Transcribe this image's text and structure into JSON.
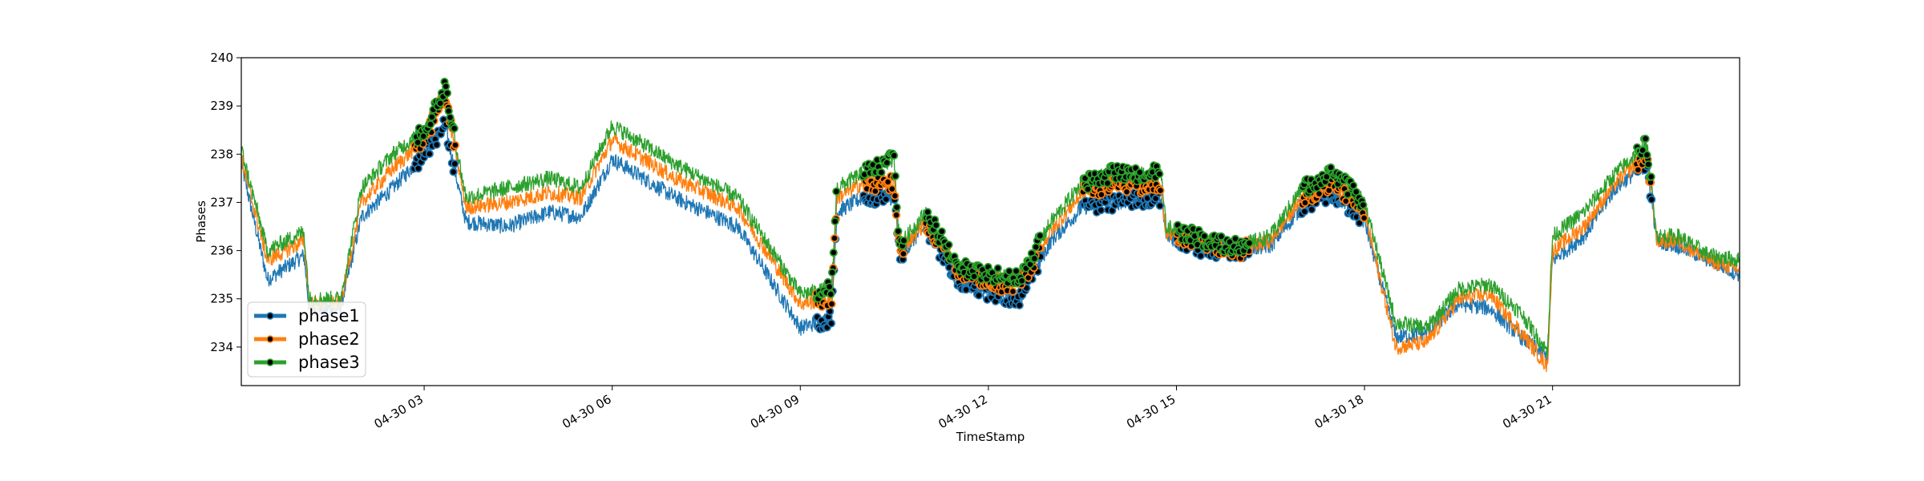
{
  "chart_data": {
    "type": "line",
    "title": "",
    "xlabel": "TimeStamp",
    "ylabel": "Phases",
    "x_tick_labels": [
      "04-30 03",
      "04-30 06",
      "04-30 09",
      "04-30 12",
      "04-30 15",
      "04-30 18",
      "04-30 21"
    ],
    "x_ticks": [
      "2024-04-30 03:00",
      "2024-04-30 06:00",
      "2024-04-30 09:00",
      "2024-04-30 12:00",
      "2024-04-30 15:00",
      "2024-04-30 18:00",
      "2024-04-30 21:00"
    ],
    "xlim": [
      "2024-04-30 00:05",
      "2024-04-30 23:59"
    ],
    "ylim": [
      233.2,
      240.0
    ],
    "y_ticks": [
      234,
      235,
      236,
      237,
      238,
      239,
      240
    ],
    "y_tick_labels": [
      "234",
      "235",
      "236",
      "237",
      "238",
      "239",
      "240"
    ],
    "grid": false,
    "legend_position": "lower-left",
    "series": [
      {
        "name": "phase1",
        "color": "#1f77b4",
        "x": [
          "2024-04-30 00:05",
          "2024-04-30 00:30",
          "2024-04-30 01:05",
          "2024-04-30 01:10",
          "2024-04-30 01:40",
          "2024-04-30 02:00",
          "2024-04-30 02:30",
          "2024-04-30 03:00",
          "2024-04-30 03:20",
          "2024-04-30 03:40",
          "2024-04-30 04:20",
          "2024-04-30 05:00",
          "2024-04-30 05:30",
          "2024-04-30 06:00",
          "2024-04-30 07:00",
          "2024-04-30 08:00",
          "2024-04-30 09:00",
          "2024-04-30 09:30",
          "2024-04-30 09:35",
          "2024-04-30 10:00",
          "2024-04-30 10:30",
          "2024-04-30 10:35",
          "2024-04-30 11:00",
          "2024-04-30 11:30",
          "2024-04-30 12:00",
          "2024-04-30 12:30",
          "2024-04-30 13:00",
          "2024-04-30 13:30",
          "2024-04-30 14:00",
          "2024-04-30 14:45",
          "2024-04-30 14:50",
          "2024-04-30 15:30",
          "2024-04-30 16:00",
          "2024-04-30 16:30",
          "2024-04-30 17:00",
          "2024-04-30 17:30",
          "2024-04-30 18:00",
          "2024-04-30 18:30",
          "2024-04-30 19:00",
          "2024-04-30 19:30",
          "2024-04-30 20:00",
          "2024-04-30 20:30",
          "2024-04-30 20:55",
          "2024-04-30 21:00",
          "2024-04-30 21:30",
          "2024-04-30 22:00",
          "2024-04-30 22:30",
          "2024-04-30 22:40",
          "2024-04-30 23:00",
          "2024-04-30 23:30",
          "2024-04-30 23:59"
        ],
        "y": [
          237.8,
          235.4,
          235.9,
          234.8,
          234.8,
          236.7,
          237.3,
          238.0,
          238.6,
          236.6,
          236.5,
          236.8,
          236.7,
          237.9,
          237.1,
          236.5,
          234.4,
          234.6,
          236.8,
          237.1,
          237.1,
          235.9,
          236.5,
          235.4,
          235.1,
          235.0,
          236.2,
          236.9,
          237.0,
          237.1,
          236.3,
          236.0,
          236.0,
          236.1,
          236.9,
          237.2,
          236.6,
          234.2,
          234.3,
          234.9,
          234.8,
          234.2,
          233.8,
          235.8,
          236.3,
          237.3,
          237.8,
          236.2,
          236.1,
          235.8,
          235.5
        ]
      },
      {
        "name": "phase2",
        "color": "#ff7f0e",
        "x": [
          "2024-04-30 00:05",
          "2024-04-30 00:30",
          "2024-04-30 01:05",
          "2024-04-30 01:10",
          "2024-04-30 01:40",
          "2024-04-30 02:00",
          "2024-04-30 02:30",
          "2024-04-30 03:00",
          "2024-04-30 03:20",
          "2024-04-30 03:40",
          "2024-04-30 04:20",
          "2024-04-30 05:00",
          "2024-04-30 05:30",
          "2024-04-30 06:00",
          "2024-04-30 07:00",
          "2024-04-30 08:00",
          "2024-04-30 09:00",
          "2024-04-30 09:30",
          "2024-04-30 09:35",
          "2024-04-30 10:00",
          "2024-04-30 10:30",
          "2024-04-30 10:35",
          "2024-04-30 11:00",
          "2024-04-30 11:30",
          "2024-04-30 12:00",
          "2024-04-30 12:30",
          "2024-04-30 13:00",
          "2024-04-30 13:30",
          "2024-04-30 14:00",
          "2024-04-30 14:45",
          "2024-04-30 14:50",
          "2024-04-30 15:30",
          "2024-04-30 16:00",
          "2024-04-30 16:30",
          "2024-04-30 17:00",
          "2024-04-30 17:30",
          "2024-04-30 18:00",
          "2024-04-30 18:30",
          "2024-04-30 19:00",
          "2024-04-30 19:30",
          "2024-04-30 20:00",
          "2024-04-30 20:30",
          "2024-04-30 20:55",
          "2024-04-30 21:00",
          "2024-04-30 21:30",
          "2024-04-30 22:00",
          "2024-04-30 22:30",
          "2024-04-30 22:40",
          "2024-04-30 23:00",
          "2024-04-30 23:30",
          "2024-04-30 23:59"
        ],
        "y": [
          237.9,
          235.8,
          236.2,
          234.9,
          234.9,
          237.0,
          237.7,
          238.3,
          239.2,
          236.9,
          237.0,
          237.2,
          237.1,
          238.3,
          237.5,
          236.9,
          234.9,
          235.0,
          237.1,
          237.4,
          237.4,
          236.0,
          236.6,
          235.6,
          235.3,
          235.3,
          236.4,
          237.2,
          237.4,
          237.3,
          236.4,
          236.1,
          236.0,
          236.2,
          237.1,
          237.4,
          236.8,
          234.0,
          234.1,
          235.0,
          235.1,
          234.3,
          233.6,
          236.0,
          236.5,
          237.4,
          238.0,
          236.2,
          236.2,
          235.8,
          235.6
        ]
      },
      {
        "name": "phase3",
        "color": "#2ca02c",
        "x": [
          "2024-04-30 00:05",
          "2024-04-30 00:30",
          "2024-04-30 01:05",
          "2024-04-30 01:10",
          "2024-04-30 01:40",
          "2024-04-30 02:00",
          "2024-04-30 02:30",
          "2024-04-30 03:00",
          "2024-04-30 03:20",
          "2024-04-30 03:40",
          "2024-04-30 04:20",
          "2024-04-30 05:00",
          "2024-04-30 05:30",
          "2024-04-30 06:00",
          "2024-04-30 07:00",
          "2024-04-30 08:00",
          "2024-04-30 09:00",
          "2024-04-30 09:30",
          "2024-04-30 09:35",
          "2024-04-30 10:00",
          "2024-04-30 10:30",
          "2024-04-30 10:35",
          "2024-04-30 11:00",
          "2024-04-30 11:30",
          "2024-04-30 12:00",
          "2024-04-30 12:30",
          "2024-04-30 13:00",
          "2024-04-30 13:30",
          "2024-04-30 14:00",
          "2024-04-30 14:45",
          "2024-04-30 14:50",
          "2024-04-30 15:30",
          "2024-04-30 16:00",
          "2024-04-30 16:30",
          "2024-04-30 17:00",
          "2024-04-30 17:30",
          "2024-04-30 18:00",
          "2024-04-30 18:30",
          "2024-04-30 19:00",
          "2024-04-30 19:30",
          "2024-04-30 20:00",
          "2024-04-30 20:30",
          "2024-04-30 20:55",
          "2024-04-30 21:00",
          "2024-04-30 21:30",
          "2024-04-30 22:00",
          "2024-04-30 22:30",
          "2024-04-30 22:40",
          "2024-04-30 23:00",
          "2024-04-30 23:30",
          "2024-04-30 23:59"
        ],
        "y": [
          238.1,
          236.0,
          236.4,
          235.0,
          235.0,
          237.3,
          238.0,
          238.5,
          239.4,
          237.1,
          237.3,
          237.5,
          237.3,
          238.6,
          237.8,
          237.1,
          235.1,
          235.2,
          237.3,
          237.6,
          237.9,
          236.1,
          236.8,
          235.7,
          235.5,
          235.4,
          236.6,
          237.4,
          237.6,
          237.6,
          236.5,
          236.2,
          236.1,
          236.3,
          237.3,
          237.6,
          237.0,
          234.5,
          234.4,
          235.2,
          235.3,
          234.7,
          233.9,
          236.3,
          236.8,
          237.6,
          238.2,
          236.3,
          236.3,
          235.9,
          235.8
        ]
      }
    ],
    "marker_clusters": [
      {
        "from": "2024-04-30 02:50",
        "to": "2024-04-30 03:30"
      },
      {
        "from": "2024-04-30 09:15",
        "to": "2024-04-30 09:35"
      },
      {
        "from": "2024-04-30 10:00",
        "to": "2024-04-30 10:40"
      },
      {
        "from": "2024-04-30 11:00",
        "to": "2024-04-30 12:50"
      },
      {
        "from": "2024-04-30 13:30",
        "to": "2024-04-30 14:45"
      },
      {
        "from": "2024-04-30 15:00",
        "to": "2024-04-30 16:10"
      },
      {
        "from": "2024-04-30 17:00",
        "to": "2024-04-30 18:00"
      },
      {
        "from": "2024-04-30 22:20",
        "to": "2024-04-30 22:35"
      }
    ]
  }
}
